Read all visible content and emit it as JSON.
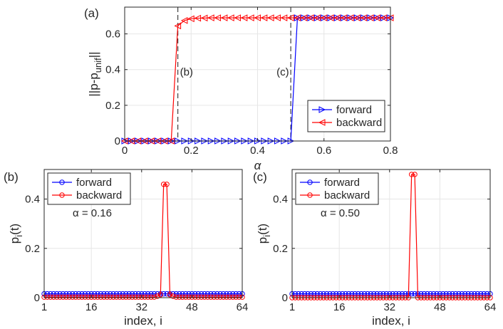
{
  "figure": {
    "panels": [
      "(a)",
      "(b)",
      "(c)"
    ]
  },
  "colors": {
    "forward": "#0000ff",
    "backward": "#ff0000",
    "grid": "#e6e6e6",
    "axis": "#262626"
  },
  "chart_data": [
    {
      "id": "a",
      "type": "line",
      "panel_label": "(a)",
      "xlabel": "α",
      "ylabel": "||p-p_unif||",
      "ylabel_main": "||p-p",
      "ylabel_sub": "unif",
      "ylabel_end": "||",
      "xlim": [
        0,
        0.8
      ],
      "ylim": [
        0,
        0.75
      ],
      "xticks": [
        0,
        0.2,
        0.4,
        0.6,
        0.8
      ],
      "xtick_labels": [
        "0",
        "0.2",
        "0.4",
        "0.6",
        "0.8"
      ],
      "yticks": [
        0,
        0.2,
        0.4,
        0.6
      ],
      "ytick_labels": [
        "0",
        "0.2",
        "0.4",
        "0.6"
      ],
      "grid": true,
      "legend_position": "bottom-right",
      "vlines": [
        {
          "x": 0.16,
          "label": "(b)"
        },
        {
          "x": 0.5,
          "label": "(c)"
        }
      ],
      "series": [
        {
          "name": "forward",
          "marker": "triangle-right",
          "x": [
            0,
            0.02,
            0.04,
            0.06,
            0.08,
            0.1,
            0.12,
            0.14,
            0.16,
            0.18,
            0.2,
            0.22,
            0.24,
            0.26,
            0.28,
            0.3,
            0.32,
            0.34,
            0.36,
            0.38,
            0.4,
            0.42,
            0.44,
            0.46,
            0.48,
            0.5,
            0.52,
            0.54,
            0.56,
            0.58,
            0.6,
            0.62,
            0.64,
            0.66,
            0.68,
            0.7,
            0.72,
            0.74,
            0.76,
            0.78,
            0.8
          ],
          "values": [
            0,
            0,
            0,
            0,
            0,
            0,
            0,
            0,
            0,
            0,
            0,
            0,
            0,
            0,
            0,
            0,
            0,
            0,
            0,
            0,
            0,
            0,
            0,
            0,
            0,
            0,
            0.69,
            0.69,
            0.69,
            0.69,
            0.69,
            0.69,
            0.69,
            0.69,
            0.69,
            0.69,
            0.69,
            0.69,
            0.69,
            0.69,
            0.69
          ]
        },
        {
          "name": "backward",
          "marker": "triangle-left",
          "x": [
            0,
            0.02,
            0.04,
            0.06,
            0.08,
            0.1,
            0.12,
            0.14,
            0.16,
            0.18,
            0.2,
            0.22,
            0.24,
            0.26,
            0.28,
            0.3,
            0.32,
            0.34,
            0.36,
            0.38,
            0.4,
            0.42,
            0.44,
            0.46,
            0.48,
            0.5,
            0.52,
            0.54,
            0.56,
            0.58,
            0.6,
            0.62,
            0.64,
            0.66,
            0.68,
            0.7,
            0.72,
            0.74,
            0.76,
            0.78,
            0.8
          ],
          "values": [
            0,
            0,
            0,
            0,
            0,
            0,
            0,
            0,
            0.645,
            0.675,
            0.685,
            0.688,
            0.689,
            0.69,
            0.69,
            0.69,
            0.69,
            0.69,
            0.69,
            0.69,
            0.69,
            0.69,
            0.69,
            0.69,
            0.69,
            0.69,
            0.69,
            0.69,
            0.69,
            0.69,
            0.69,
            0.69,
            0.69,
            0.69,
            0.69,
            0.69,
            0.69,
            0.69,
            0.69,
            0.69,
            0.69
          ]
        }
      ]
    },
    {
      "id": "b",
      "type": "line",
      "panel_label": "(b)",
      "annotation": "α = 0.16",
      "xlabel": "index, i",
      "ylabel": "p_i(t)",
      "ylabel_main": "p",
      "ylabel_sub": "i",
      "ylabel_end": "(t)",
      "xlim": [
        1,
        64
      ],
      "ylim": [
        0,
        0.52
      ],
      "xticks": [
        1,
        16,
        32,
        48,
        64
      ],
      "xtick_labels": [
        "1",
        "16",
        "32",
        "48",
        "64"
      ],
      "yticks": [
        0,
        0.2,
        0.4
      ],
      "ytick_labels": [
        "0",
        "0.2",
        "0.4"
      ],
      "grid": true,
      "legend_position": "top-left",
      "peak": {
        "indices": [
          39,
          40
        ],
        "value": 0.46
      },
      "series": [
        {
          "name": "forward",
          "marker": "circle",
          "uniform_value": 0.0156
        },
        {
          "name": "backward",
          "marker": "circle",
          "baseline": 0.002,
          "shoulder": {
            "38": 0.012,
            "41": 0.012,
            "37": 0.006,
            "42": 0.006
          }
        }
      ]
    },
    {
      "id": "c",
      "type": "line",
      "panel_label": "(c)",
      "annotation": "α = 0.50",
      "xlabel": "index, i",
      "ylabel": "p_i(t)",
      "ylabel_main": "p",
      "ylabel_sub": "i",
      "ylabel_end": "(t)",
      "xlim": [
        1,
        64
      ],
      "ylim": [
        0,
        0.52
      ],
      "xticks": [
        1,
        16,
        32,
        48,
        64
      ],
      "xtick_labels": [
        "1",
        "16",
        "32",
        "48",
        "64"
      ],
      "yticks": [
        0,
        0.2,
        0.4
      ],
      "ytick_labels": [
        "0",
        "0.2",
        "0.4"
      ],
      "grid": true,
      "legend_position": "top-left",
      "peak": {
        "indices": [
          39,
          40
        ],
        "value": 0.5
      },
      "series": [
        {
          "name": "forward",
          "marker": "circle",
          "uniform_value": 0.0156
        },
        {
          "name": "backward",
          "marker": "circle",
          "baseline": 0.0,
          "shoulder": {}
        }
      ]
    }
  ]
}
